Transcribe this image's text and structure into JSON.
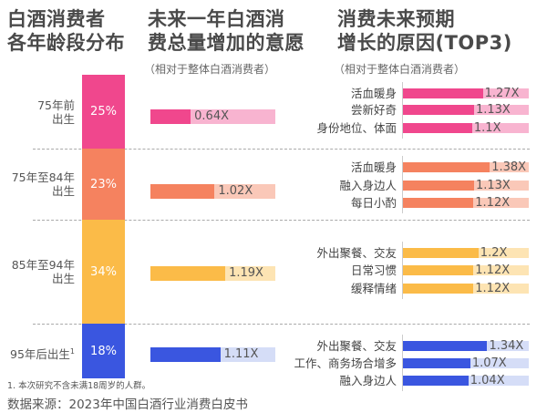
{
  "chart_data": {
    "type": "bar",
    "titles": [
      "白酒消费者\n各年龄段分布",
      "未来一年白酒消\n费总量增加的意愿",
      "消费未来预期\n增长的原因(TOP3)"
    ],
    "subtitle": "（相对于整体白酒消费者）",
    "groups": [
      {
        "age": "75年前\n出生",
        "share": "25%",
        "share_value": 25,
        "willingness": "0.64X",
        "willingness_value": 0.64,
        "color": "#f0478d",
        "light": "#f8b4d0",
        "reasons": [
          {
            "label": "活血暖身",
            "value": 1.27,
            "text": "1.27X"
          },
          {
            "label": "尝新好奇",
            "value": 1.13,
            "text": "1.13X"
          },
          {
            "label": "身份地位、体面",
            "value": 1.1,
            "text": "1.1X"
          }
        ]
      },
      {
        "age": "75年至84年\n出生",
        "share": "23%",
        "share_value": 23,
        "willingness": "1.02X",
        "willingness_value": 1.02,
        "color": "#f5825f",
        "light": "#fac8b8",
        "reasons": [
          {
            "label": "活血暖身",
            "value": 1.38,
            "text": "1.38X"
          },
          {
            "label": "融入身边人",
            "value": 1.13,
            "text": "1.13X"
          },
          {
            "label": "每日小酌",
            "value": 1.12,
            "text": "1.12X"
          }
        ]
      },
      {
        "age": "85年至94年\n出生",
        "share": "34%",
        "share_value": 34,
        "willingness": "1.19X",
        "willingness_value": 1.19,
        "color": "#fbbb48",
        "light": "#fde4b3",
        "reasons": [
          {
            "label": "外出聚餐、交友",
            "value": 1.2,
            "text": "1.2X"
          },
          {
            "label": "日常习惯",
            "value": 1.12,
            "text": "1.12X"
          },
          {
            "label": "缓释情绪",
            "value": 1.12,
            "text": "1.12X"
          }
        ]
      },
      {
        "age": "95年后出生",
        "age_note": "1",
        "share": "18%",
        "share_value": 18,
        "willingness": "1.11X",
        "willingness_value": 1.11,
        "color": "#3a56e0",
        "light": "#d5ddf7",
        "reasons": [
          {
            "label": "外出聚餐、交友",
            "value": 1.34,
            "text": "1.34X"
          },
          {
            "label": "工作、商务场合增多",
            "value": 1.07,
            "text": "1.07X"
          },
          {
            "label": "融入身边人",
            "value": 1.04,
            "text": "1.04X"
          }
        ]
      }
    ]
  },
  "footnote": "1. 本次研究不含未满18周岁的人群。",
  "source": "数据来源：2023年中国白酒行业消费白皮书"
}
